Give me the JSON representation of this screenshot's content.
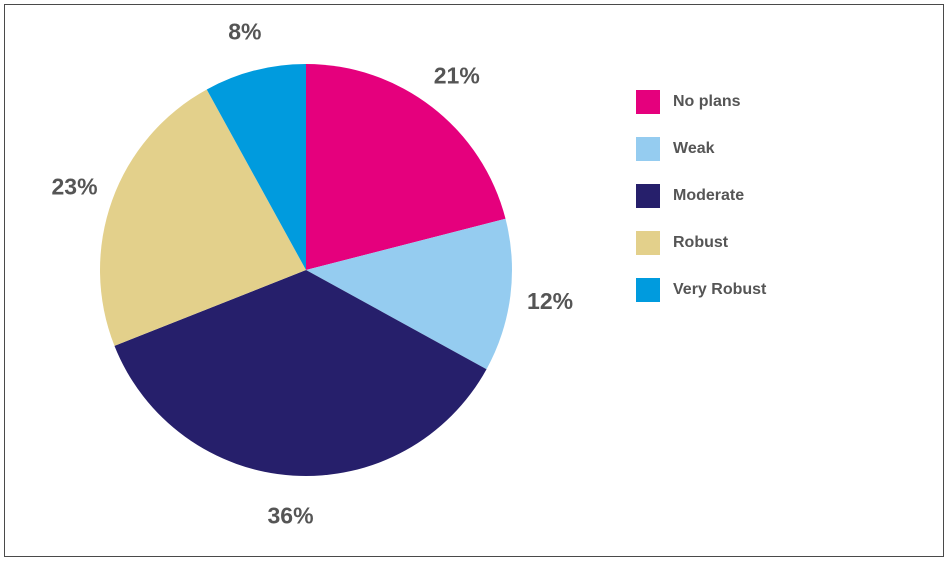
{
  "chart_data": {
    "type": "pie",
    "title": "",
    "slices": [
      {
        "label": "No plans",
        "value": 21,
        "value_label": "21%",
        "color": "#E5007D"
      },
      {
        "label": "Weak",
        "value": 12,
        "value_label": "12%",
        "color": "#95CCF0"
      },
      {
        "label": "Moderate",
        "value": 36,
        "value_label": "36%",
        "color": "#261F6B"
      },
      {
        "label": "Robust",
        "value": 23,
        "value_label": "23%",
        "color": "#E3D08B"
      },
      {
        "label": "Very Robust",
        "value": 8,
        "value_label": "8%",
        "color": "#009BDE"
      }
    ],
    "start_angle": "12 o'clock",
    "direction": "clockwise",
    "legend_position": "right"
  }
}
